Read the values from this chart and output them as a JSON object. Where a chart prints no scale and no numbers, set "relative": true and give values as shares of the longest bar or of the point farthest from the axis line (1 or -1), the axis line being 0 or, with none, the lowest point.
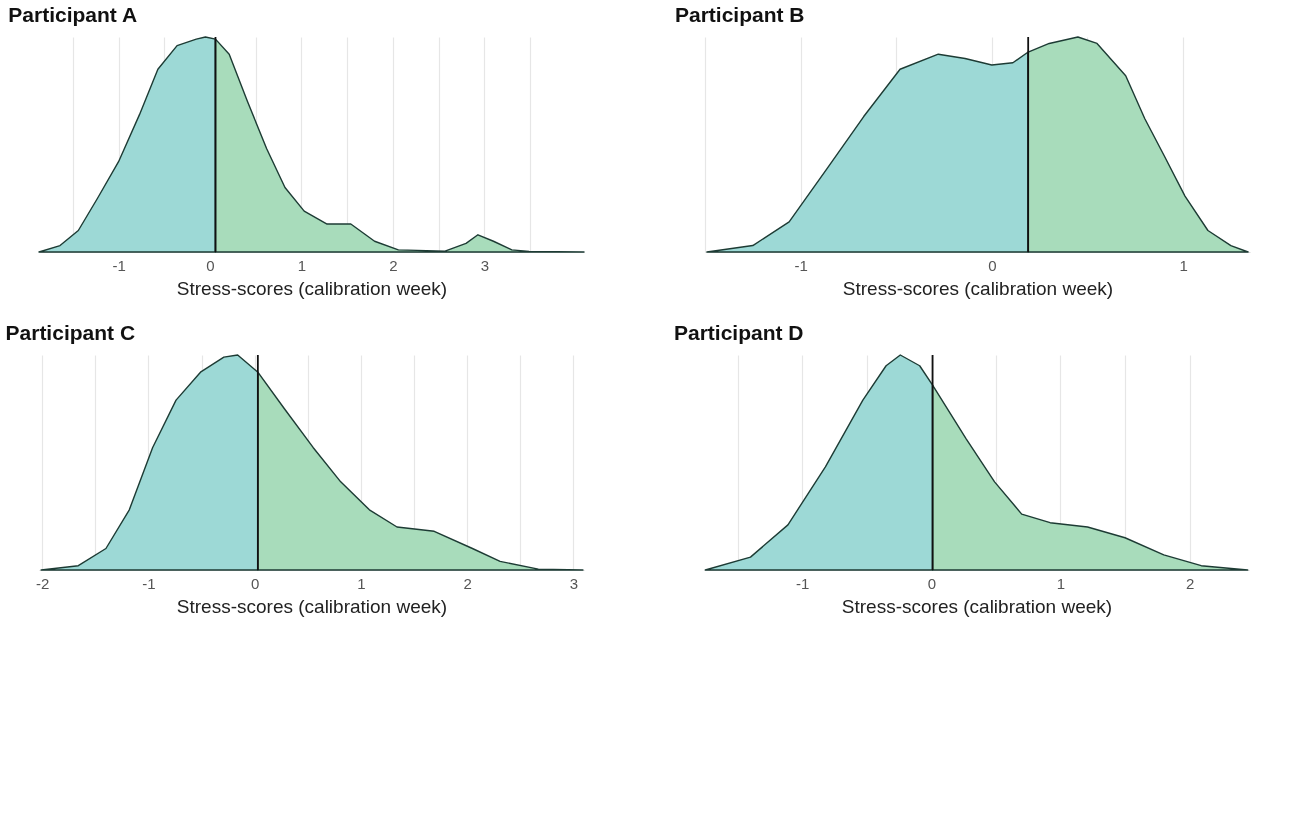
{
  "chart_data": [
    {
      "type": "area",
      "title": "Participant A",
      "xlabel": "Stress-scores (calibration week)",
      "relative": true,
      "grid": "x",
      "tick_labels": "x",
      "xlim": [
        -1.87,
        4.09
      ],
      "xticks": [
        {
          "value": -1.5,
          "label": null
        },
        -1,
        {
          "value": -0.5,
          "label": null
        },
        0,
        {
          "value": 0.5,
          "label": null
        },
        1,
        {
          "value": 1.5,
          "label": null
        },
        2,
        {
          "value": 2.5,
          "label": null
        },
        3,
        {
          "value": 3.5,
          "label": null
        }
      ],
      "ref_lines": [
        {
          "axis": "x",
          "value": 0.06,
          "color": "#111111"
        }
      ],
      "series": [
        {
          "color": "#9dd9d6",
          "x": [
            -1.87,
            -1.64,
            -1.44,
            -1.23,
            -1.0,
            -0.77,
            -0.57,
            -0.36,
            -0.15,
            -0.05,
            0.06
          ],
          "values": [
            0,
            0.03,
            0.1,
            0.25,
            0.42,
            0.64,
            0.85,
            0.96,
            0.99,
            1.0,
            0.99
          ]
        },
        {
          "color": "#a8dcbb",
          "x": [
            0.06,
            0.21,
            0.41,
            0.62,
            0.82,
            1.03,
            1.28,
            1.54,
            1.8,
            2.06,
            2.57,
            2.8,
            2.93,
            3.1,
            3.3,
            3.49,
            4.09
          ],
          "values": [
            0.99,
            0.92,
            0.7,
            0.48,
            0.3,
            0.19,
            0.13,
            0.13,
            0.05,
            0.01,
            0.004,
            0.04,
            0.08,
            0.05,
            0.01,
            0.003,
            0
          ]
        }
      ]
    },
    {
      "type": "area",
      "title": "Participant B",
      "xlabel": "Stress-scores (calibration week)",
      "relative": true,
      "grid": "x",
      "tick_labels": "x",
      "xlim": [
        -1.5,
        1.35
      ],
      "xticks": [
        {
          "value": -1.5,
          "label": null
        },
        -1,
        {
          "value": -0.5,
          "label": null
        },
        0,
        {
          "value": 0.5,
          "label": null
        },
        1
      ],
      "ref_lines": [
        {
          "axis": "x",
          "value": 0.19,
          "color": "#111111"
        }
      ],
      "series": [
        {
          "color": "#9dd9d6",
          "x": [
            -1.49,
            -1.25,
            -1.06,
            -0.86,
            -0.67,
            -0.48,
            -0.28,
            -0.14,
            0,
            0.11,
            0.19
          ],
          "values": [
            0,
            0.03,
            0.14,
            0.39,
            0.63,
            0.85,
            0.92,
            0.9,
            0.87,
            0.88,
            0.93
          ]
        },
        {
          "color": "#a8dcbb",
          "x": [
            0.19,
            0.3,
            0.45,
            0.55,
            0.7,
            0.8,
            0.9,
            1.01,
            1.13,
            1.25,
            1.34
          ],
          "values": [
            0.93,
            0.97,
            1.0,
            0.97,
            0.82,
            0.62,
            0.45,
            0.26,
            0.1,
            0.03,
            0
          ]
        }
      ]
    },
    {
      "type": "area",
      "title": "Participant C",
      "xlabel": "Stress-scores (calibration week)",
      "relative": true,
      "grid": "x",
      "tick_labels": "x",
      "xlim": [
        -2.03,
        3.1
      ],
      "xticks": [
        -2,
        {
          "value": -1.5,
          "label": null
        },
        -1,
        {
          "value": -0.5,
          "label": null
        },
        0,
        {
          "value": 0.5,
          "label": null
        },
        1,
        {
          "value": 1.5,
          "label": null
        },
        2,
        {
          "value": 2.5,
          "label": null
        },
        3
      ],
      "ref_lines": [
        {
          "axis": "x",
          "value": 0.03,
          "color": "#111111"
        }
      ],
      "series": [
        {
          "color": "#9dd9d6",
          "x": [
            -2.01,
            -1.66,
            -1.4,
            -1.18,
            -0.96,
            -0.74,
            -0.51,
            -0.29,
            -0.16,
            0.03
          ],
          "values": [
            0,
            0.02,
            0.1,
            0.28,
            0.57,
            0.79,
            0.92,
            0.99,
            1.0,
            0.92
          ]
        },
        {
          "color": "#a8dcbb",
          "x": [
            0.03,
            0.28,
            0.55,
            0.81,
            1.08,
            1.34,
            1.69,
            2.05,
            2.31,
            2.67,
            3.09
          ],
          "values": [
            0.92,
            0.75,
            0.57,
            0.41,
            0.28,
            0.2,
            0.18,
            0.1,
            0.04,
            0.004,
            0
          ]
        }
      ]
    },
    {
      "type": "area",
      "title": "Participant D",
      "xlabel": "Stress-scores (calibration week)",
      "relative": true,
      "grid": "x",
      "tick_labels": "x",
      "xlim": [
        -1.76,
        2.46
      ],
      "xticks": [
        {
          "value": -1.5,
          "label": null
        },
        -1,
        {
          "value": -0.5,
          "label": null
        },
        0,
        {
          "value": 0.5,
          "label": null
        },
        1,
        {
          "value": 1.5,
          "label": null
        },
        2
      ],
      "ref_lines": [
        {
          "axis": "x",
          "value": 0.01,
          "color": "#111111"
        }
      ],
      "series": [
        {
          "color": "#9dd9d6",
          "x": [
            -1.75,
            -1.4,
            -1.11,
            -0.82,
            -0.53,
            -0.35,
            -0.24,
            -0.09,
            0.01
          ],
          "values": [
            0,
            0.06,
            0.21,
            0.48,
            0.79,
            0.95,
            1.0,
            0.95,
            0.86
          ]
        },
        {
          "color": "#a8dcbb",
          "x": [
            0.01,
            0.27,
            0.49,
            0.7,
            0.92,
            1.21,
            1.5,
            1.8,
            2.09,
            2.45
          ],
          "values": [
            0.86,
            0.61,
            0.41,
            0.26,
            0.22,
            0.2,
            0.15,
            0.07,
            0.02,
            0
          ]
        }
      ]
    }
  ]
}
